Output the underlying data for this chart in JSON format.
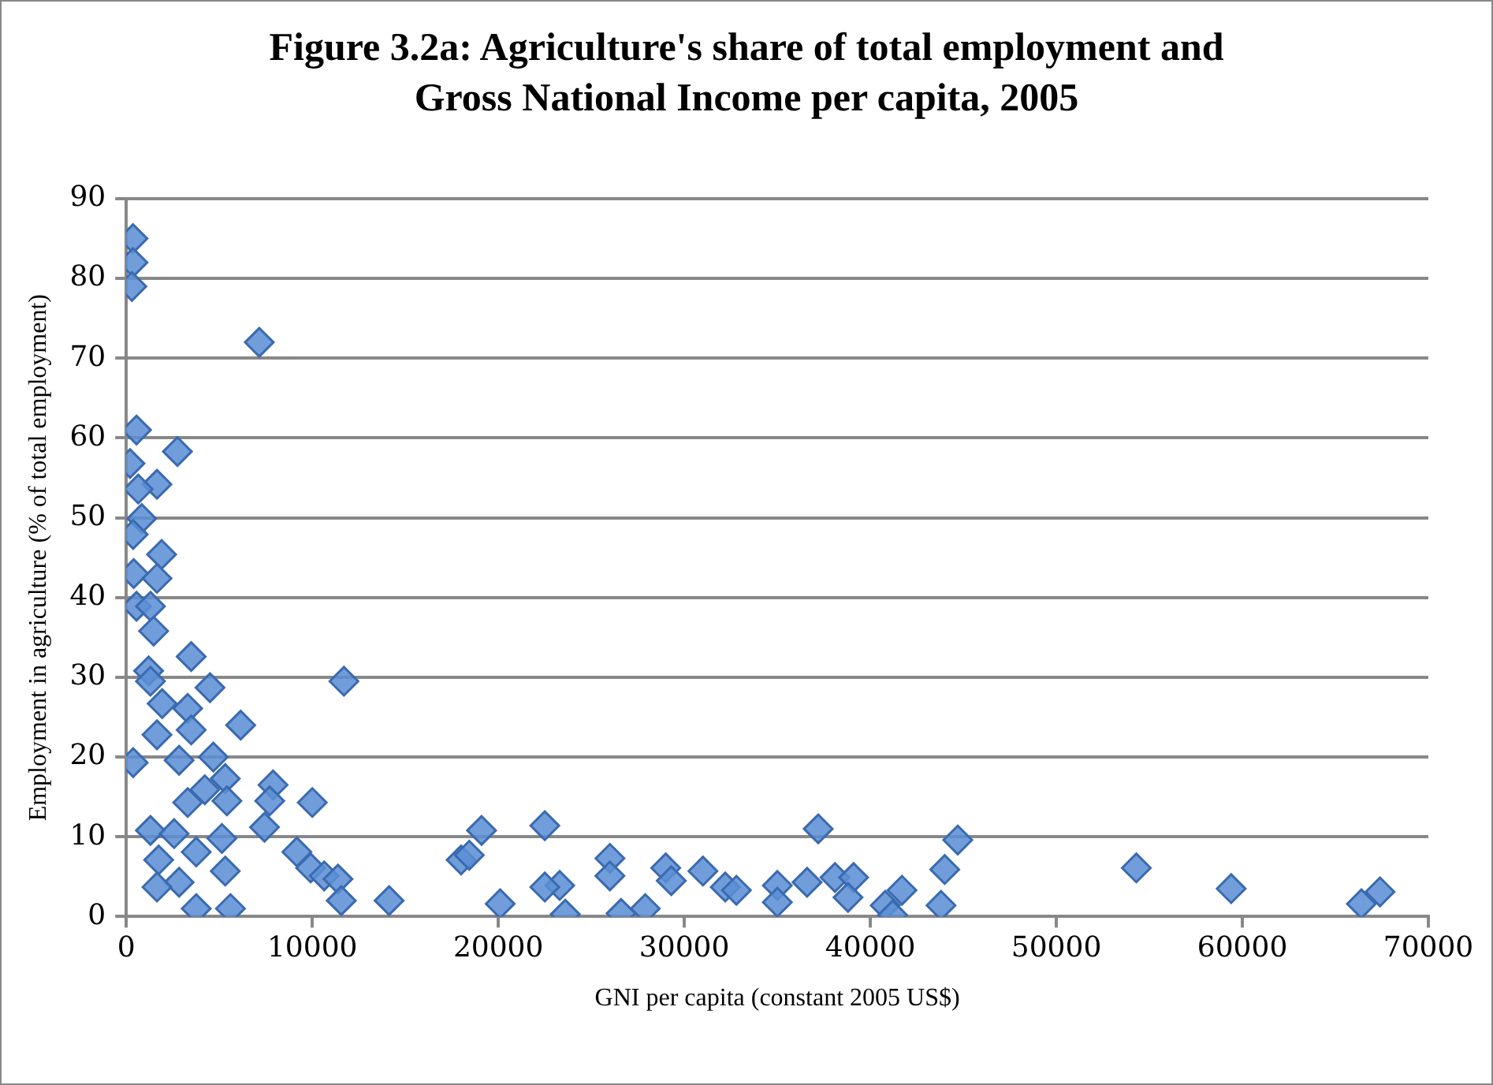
{
  "chart_data": {
    "type": "scatter",
    "title": "Figure 3.2a: Agriculture's share of total employment and Gross National Income per capita, 2005",
    "xlabel": "GNI per capita (constant 2005 US$)",
    "ylabel": "Employment in agriculture (% of total employment)",
    "x": [
      360,
      360,
      300,
      7150,
      550,
      2750,
      200,
      1650,
      640,
      830,
      370,
      1900,
      400,
      1650,
      550,
      1300,
      1470,
      3490,
      1200,
      1300,
      4500,
      11700,
      1930,
      3300,
      6150,
      1650,
      3490,
      370,
      2840,
      4680,
      5320,
      7890,
      4220,
      7710,
      10000,
      3300,
      5410,
      7430,
      1300,
      2570,
      5140,
      3760,
      9170,
      1740,
      5320,
      9910,
      10640,
      11380,
      2840,
      1650,
      11560,
      14130,
      3760,
      5600,
      19100,
      18000,
      18440,
      20100,
      22500,
      23300,
      22500,
      23600,
      26000,
      26000,
      26600,
      27900,
      29000,
      29300,
      31000,
      32200,
      32800,
      35000,
      35000,
      36600,
      37200,
      38100,
      39100,
      38800,
      41700,
      40800,
      41200,
      43800,
      44000,
      44700,
      54300,
      59400,
      66400,
      67400
    ],
    "series": [
      {
        "color": "#5b8fd6",
        "values": [
          85,
          82,
          79,
          72,
          61,
          58.3,
          56.8,
          54.2,
          53.6,
          49.9,
          47.9,
          45.4,
          43,
          42.4,
          38.9,
          38.9,
          35.8,
          32.6,
          30.8,
          29.5,
          28.7,
          29.5,
          26.7,
          26.1,
          24,
          22.8,
          23.4,
          19.3,
          19.6,
          20,
          17.3,
          16.5,
          15.9,
          14.5,
          14.3,
          14.3,
          14.5,
          11.2,
          10.8,
          10.4,
          9.8,
          8.1,
          8.1,
          7.1,
          5.7,
          6.1,
          5.1,
          4.7,
          4.3,
          3.7,
          2,
          2,
          1,
          1,
          10.8,
          7.1,
          7.7,
          1.6,
          11.4,
          3.9,
          3.7,
          0.3,
          7.3,
          5.1,
          0.4,
          1,
          6.1,
          4.5,
          5.7,
          3.7,
          3.3,
          3.9,
          1.8,
          4.3,
          11,
          4.9,
          4.9,
          2.4,
          3.3,
          1.4,
          0.2,
          1.4,
          5.9,
          9.6,
          6.1,
          3.5,
          1.6,
          3.1
        ]
      }
    ],
    "xlim": [
      0,
      70000
    ],
    "xticks": [
      0,
      10000,
      20000,
      30000,
      40000,
      50000,
      60000,
      70000
    ],
    "ylim": [
      0,
      90
    ],
    "yticks": [
      0,
      10,
      20,
      30,
      40,
      50,
      60,
      70,
      80,
      90
    ],
    "grid": "y",
    "legend": false,
    "marker": "diamond"
  }
}
